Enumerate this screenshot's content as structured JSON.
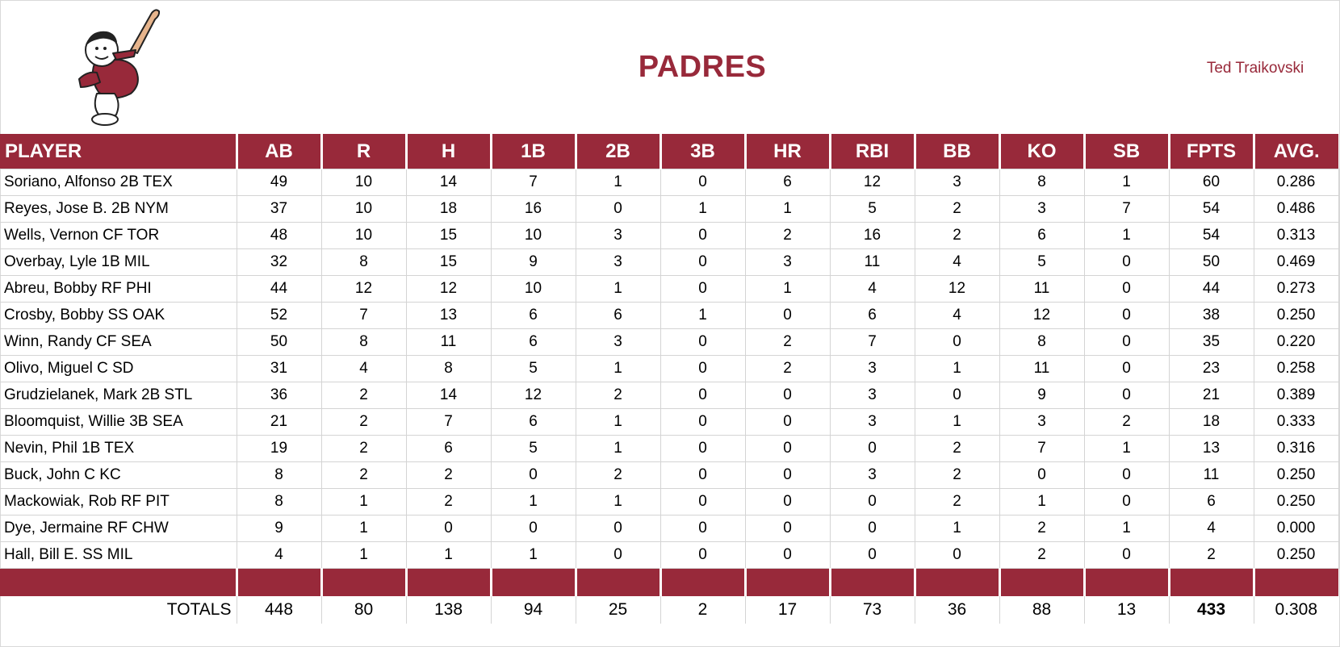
{
  "header": {
    "title": "PADRES",
    "owner": "Ted Traikovski"
  },
  "colors": {
    "accent": "#98293a"
  },
  "table": {
    "columns": [
      "PLAYER",
      "AB",
      "R",
      "H",
      "1B",
      "2B",
      "3B",
      "HR",
      "RBI",
      "BB",
      "KO",
      "SB",
      "FPTS",
      "AVG."
    ],
    "rows": [
      [
        "Soriano, Alfonso 2B TEX",
        "49",
        "10",
        "14",
        "7",
        "1",
        "0",
        "6",
        "12",
        "3",
        "8",
        "1",
        "60",
        "0.286"
      ],
      [
        "Reyes, Jose B. 2B NYM",
        "37",
        "10",
        "18",
        "16",
        "0",
        "1",
        "1",
        "5",
        "2",
        "3",
        "7",
        "54",
        "0.486"
      ],
      [
        "Wells, Vernon CF TOR",
        "48",
        "10",
        "15",
        "10",
        "3",
        "0",
        "2",
        "16",
        "2",
        "6",
        "1",
        "54",
        "0.313"
      ],
      [
        "Overbay, Lyle 1B MIL",
        "32",
        "8",
        "15",
        "9",
        "3",
        "0",
        "3",
        "11",
        "4",
        "5",
        "0",
        "50",
        "0.469"
      ],
      [
        "Abreu, Bobby RF PHI",
        "44",
        "12",
        "12",
        "10",
        "1",
        "0",
        "1",
        "4",
        "12",
        "11",
        "0",
        "44",
        "0.273"
      ],
      [
        "Crosby, Bobby SS OAK",
        "52",
        "7",
        "13",
        "6",
        "6",
        "1",
        "0",
        "6",
        "4",
        "12",
        "0",
        "38",
        "0.250"
      ],
      [
        "Winn, Randy CF SEA",
        "50",
        "8",
        "11",
        "6",
        "3",
        "0",
        "2",
        "7",
        "0",
        "8",
        "0",
        "35",
        "0.220"
      ],
      [
        "Olivo, Miguel C SD",
        "31",
        "4",
        "8",
        "5",
        "1",
        "0",
        "2",
        "3",
        "1",
        "11",
        "0",
        "23",
        "0.258"
      ],
      [
        "Grudzielanek, Mark 2B STL",
        "36",
        "2",
        "14",
        "12",
        "2",
        "0",
        "0",
        "3",
        "0",
        "9",
        "0",
        "21",
        "0.389"
      ],
      [
        "Bloomquist, Willie 3B SEA",
        "21",
        "2",
        "7",
        "6",
        "1",
        "0",
        "0",
        "3",
        "1",
        "3",
        "2",
        "18",
        "0.333"
      ],
      [
        "Nevin, Phil 1B TEX",
        "19",
        "2",
        "6",
        "5",
        "1",
        "0",
        "0",
        "0",
        "2",
        "7",
        "1",
        "13",
        "0.316"
      ],
      [
        "Buck, John C KC",
        "8",
        "2",
        "2",
        "0",
        "2",
        "0",
        "0",
        "3",
        "2",
        "0",
        "0",
        "11",
        "0.250"
      ],
      [
        "Mackowiak, Rob RF PIT",
        "8",
        "1",
        "2",
        "1",
        "1",
        "0",
        "0",
        "0",
        "2",
        "1",
        "0",
        "6",
        "0.250"
      ],
      [
        "Dye, Jermaine RF CHW",
        "9",
        "1",
        "0",
        "0",
        "0",
        "0",
        "0",
        "0",
        "1",
        "2",
        "1",
        "4",
        "0.000"
      ],
      [
        "Hall, Bill E. SS MIL",
        "4",
        "1",
        "1",
        "1",
        "0",
        "0",
        "0",
        "0",
        "0",
        "2",
        "0",
        "2",
        "0.250"
      ]
    ],
    "totals": [
      "TOTALS",
      "448",
      "80",
      "138",
      "94",
      "25",
      "2",
      "17",
      "73",
      "36",
      "88",
      "13",
      "433",
      "0.308"
    ]
  }
}
